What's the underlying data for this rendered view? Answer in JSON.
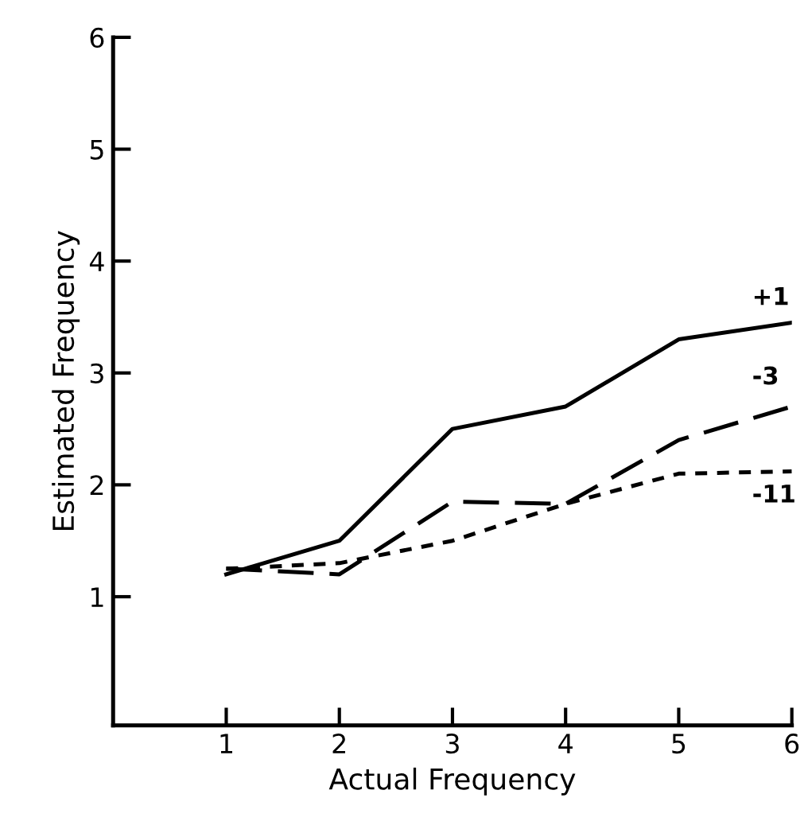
{
  "chart_data": {
    "type": "line",
    "xlabel": "Actual Frequency",
    "ylabel": "Estimated Frequency",
    "x": [
      1,
      2,
      3,
      4,
      5,
      6
    ],
    "series": [
      {
        "name": "+1",
        "color": "#000000",
        "line_style": "solid",
        "values": [
          1.2,
          1.5,
          2.5,
          2.7,
          3.3,
          3.45
        ]
      },
      {
        "name": "-3",
        "color": "#000000",
        "line_style": "dashed",
        "values": [
          1.25,
          1.2,
          1.85,
          1.83,
          2.4,
          2.7
        ]
      },
      {
        "name": "-11",
        "color": "#000000",
        "line_style": "dotted",
        "values": [
          1.25,
          1.3,
          1.5,
          1.83,
          2.1,
          2.12
        ]
      }
    ],
    "xlim": [
      0,
      6
    ],
    "ylim": [
      -0.15,
      6
    ],
    "xticks": [
      1,
      2,
      3,
      4,
      5,
      6
    ],
    "yticks": [
      1,
      2,
      3,
      4,
      5,
      6
    ],
    "grid": false,
    "legend": false,
    "marker": "none"
  }
}
